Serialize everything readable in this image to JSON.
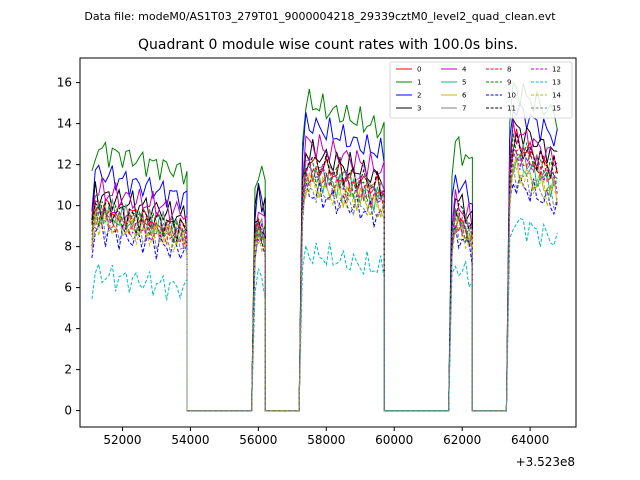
{
  "chart_data": {
    "type": "line",
    "suptitle": "Data file: modeM0/AS1T03_279T01_9000004218_29339cztM0_level2_quad_clean.evt",
    "title": "Quadrant 0 module wise count rates with 100.0s bins.",
    "xlabel": "",
    "ylabel": "",
    "x_offset_label": "+3.523e8",
    "xlim": [
      50750,
      65350
    ],
    "ylim": [
      -0.8,
      17.2
    ],
    "x_ticks": [
      52000,
      54000,
      56000,
      58000,
      60000,
      62000,
      64000
    ],
    "x_tick_labels": [
      "52000",
      "54000",
      "56000",
      "58000",
      "60000",
      "62000",
      "64000"
    ],
    "y_ticks": [
      0,
      2,
      4,
      6,
      8,
      10,
      12,
      14,
      16
    ],
    "y_tick_labels": [
      "0",
      "2",
      "4",
      "6",
      "8",
      "10",
      "12",
      "14",
      "16"
    ],
    "grid": false,
    "legend_placement": "top-right",
    "segments": [
      {
        "start": 51100,
        "end": 53900
      },
      {
        "start": 55900,
        "end": 56200
      },
      {
        "start": 57300,
        "end": 59700
      },
      {
        "start": 61700,
        "end": 62300
      },
      {
        "start": 63400,
        "end": 64800
      }
    ],
    "series": [
      {
        "name": "0",
        "color": "#ff0000",
        "dash": "solid",
        "segment_means": [
          9.5,
          9.0,
          11.5,
          9.0,
          12.5
        ],
        "decay": 0.13
      },
      {
        "name": "1",
        "color": "#008000",
        "dash": "solid",
        "segment_means": [
          12.2,
          11.7,
          14.4,
          12.6,
          15.1
        ],
        "decay": 0.1
      },
      {
        "name": "2",
        "color": "#0000ff",
        "dash": "solid",
        "segment_means": [
          11.0,
          10.4,
          13.3,
          10.9,
          14.1
        ],
        "decay": 0.12
      },
      {
        "name": "3",
        "color": "#000000",
        "dash": "solid",
        "segment_means": [
          10.0,
          10.6,
          12.0,
          10.0,
          13.2
        ],
        "decay": 0.12
      },
      {
        "name": "4",
        "color": "#bf00bf",
        "dash": "solid",
        "segment_means": [
          10.2,
          9.6,
          12.4,
          9.8,
          13.0
        ],
        "decay": 0.12
      },
      {
        "name": "5",
        "color": "#00bf80",
        "dash": "solid",
        "segment_means": [
          9.1,
          8.8,
          10.9,
          8.9,
          11.6
        ],
        "decay": 0.12
      },
      {
        "name": "6",
        "color": "#bfbf00",
        "dash": "solid",
        "segment_means": [
          8.9,
          8.6,
          10.6,
          8.8,
          11.3
        ],
        "decay": 0.12
      },
      {
        "name": "7",
        "color": "#808080",
        "dash": "solid",
        "segment_means": [
          9.3,
          8.9,
          11.3,
          9.2,
          12.0
        ],
        "decay": 0.12
      },
      {
        "name": "8",
        "color": "#ff0000",
        "dash": "dashed",
        "segment_means": [
          9.0,
          8.7,
          11.0,
          8.9,
          12.0
        ],
        "decay": 0.12
      },
      {
        "name": "9",
        "color": "#008000",
        "dash": "dashed",
        "segment_means": [
          9.2,
          8.9,
          11.2,
          9.0,
          12.2
        ],
        "decay": 0.12
      },
      {
        "name": "10",
        "color": "#0000ff",
        "dash": "dashed",
        "segment_means": [
          8.3,
          8.2,
          10.1,
          8.3,
          10.6
        ],
        "decay": 0.13
      },
      {
        "name": "11",
        "color": "#000000",
        "dash": "dashed",
        "segment_means": [
          9.4,
          9.2,
          11.6,
          9.6,
          12.4
        ],
        "decay": 0.12
      },
      {
        "name": "12",
        "color": "#bf00bf",
        "dash": "dashed",
        "segment_means": [
          9.1,
          8.8,
          11.1,
          9.2,
          12.0
        ],
        "decay": 0.12
      },
      {
        "name": "13",
        "color": "#00bfbf",
        "dash": "dashed",
        "segment_means": [
          6.3,
          6.4,
          7.3,
          6.8,
          8.8
        ],
        "decay": 0.12
      },
      {
        "name": "14",
        "color": "#bfbf00",
        "dash": "dashed",
        "segment_means": [
          8.7,
          8.5,
          10.4,
          8.6,
          11.1
        ],
        "decay": 0.12
      },
      {
        "name": "15",
        "color": "#808080",
        "dash": "dashed",
        "segment_means": [
          8.6,
          8.4,
          10.3,
          8.5,
          11.0
        ],
        "decay": 0.12
      }
    ]
  }
}
